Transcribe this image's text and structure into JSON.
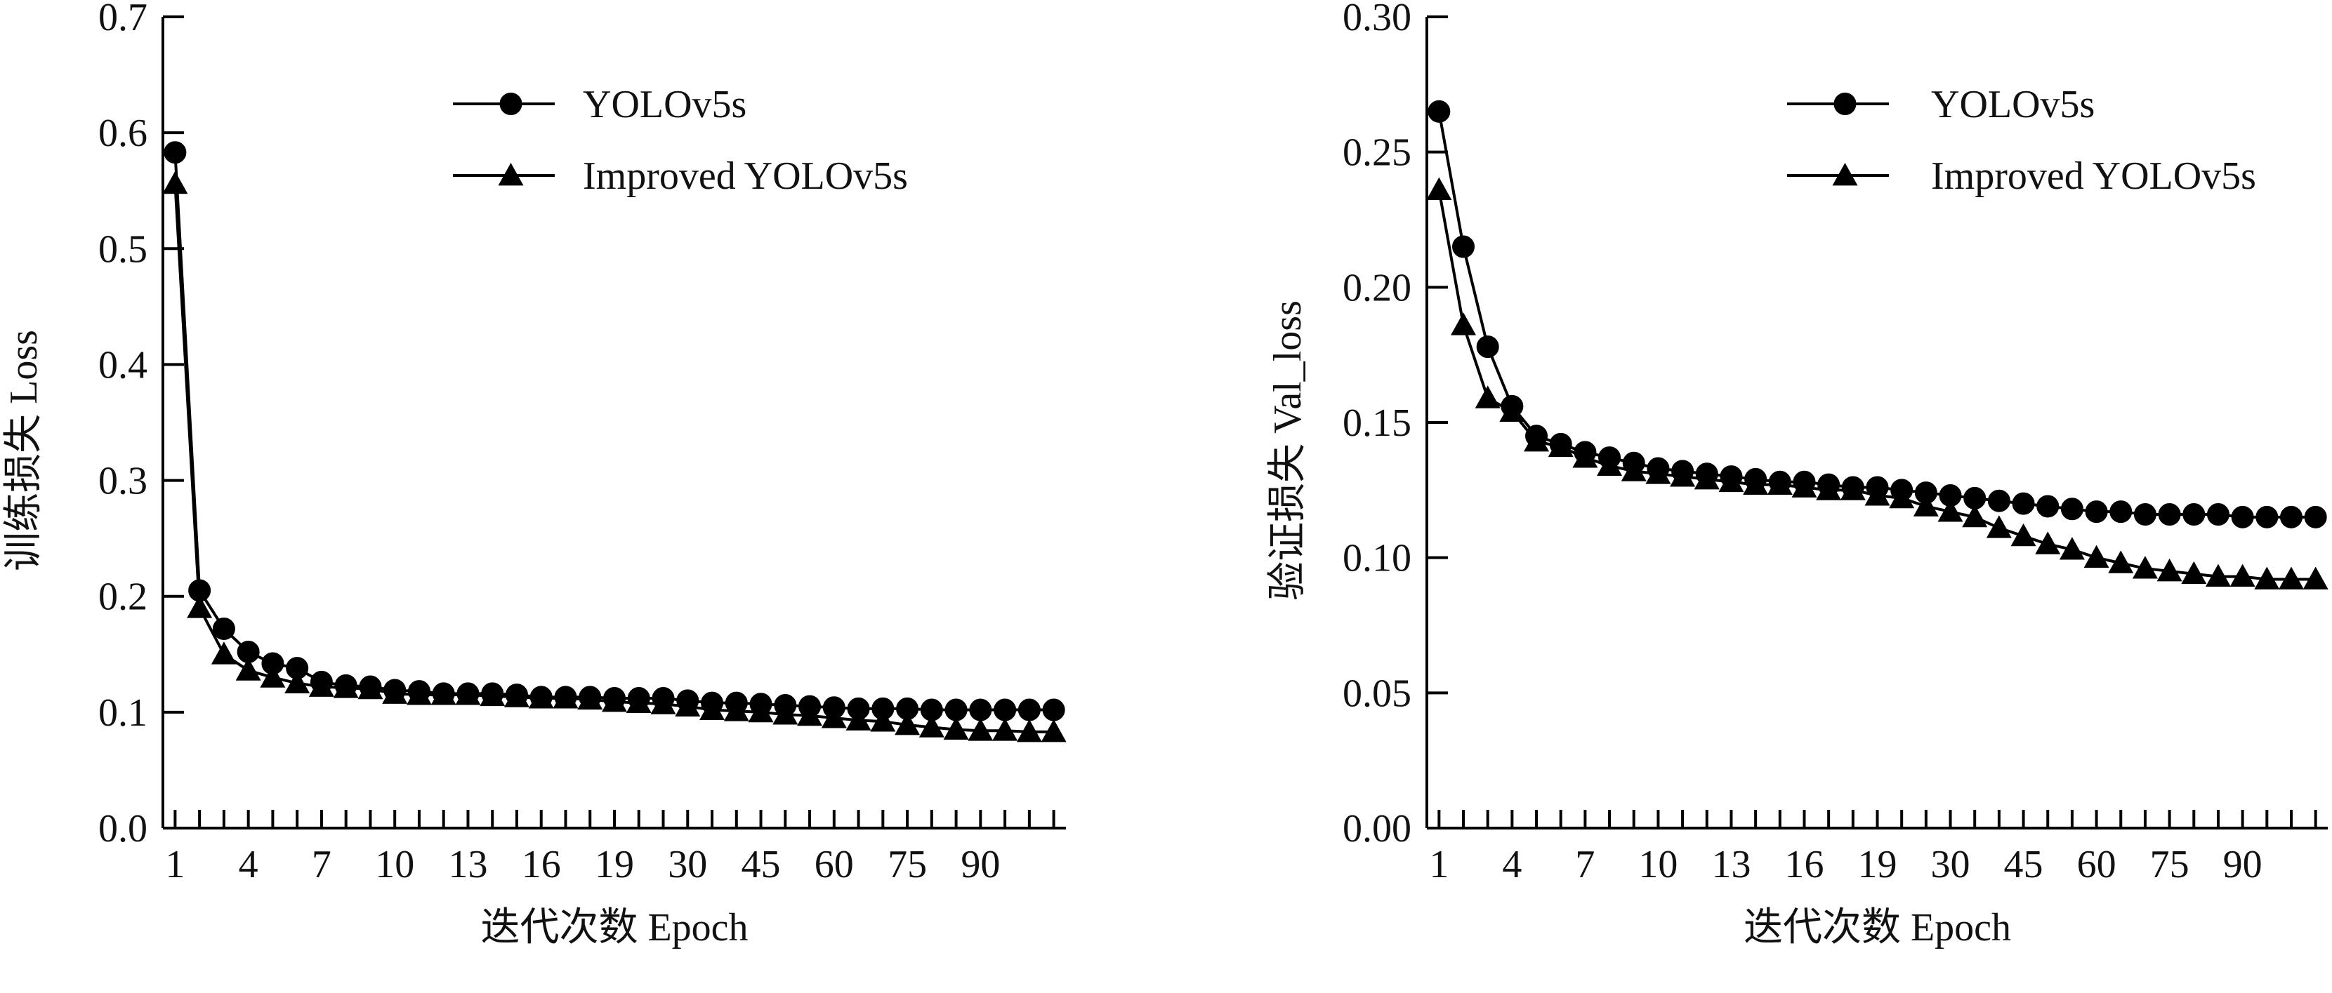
{
  "chart_data": [
    {
      "type": "line",
      "ylabel": "训练损失 Loss",
      "xlabel": "迭代次数 Epoch",
      "xticks": [
        "1",
        "4",
        "7",
        "10",
        "13",
        "16",
        "19",
        "30",
        "45",
        "60",
        "75",
        "90"
      ],
      "ylim": [
        0,
        0.7
      ],
      "yticks": [
        "0.0",
        "0.1",
        "0.2",
        "0.3",
        "0.4",
        "0.5",
        "0.6",
        "0.7"
      ],
      "legend_position": "top-right",
      "series": [
        {
          "name": "YOLOv5s",
          "marker": "circle",
          "values": [
            0.583,
            0.205,
            0.172,
            0.152,
            0.142,
            0.138,
            0.126,
            0.123,
            0.122,
            0.119,
            0.118,
            0.116,
            0.116,
            0.116,
            0.115,
            0.113,
            0.113,
            0.113,
            0.112,
            0.112,
            0.112,
            0.11,
            0.108,
            0.108,
            0.107,
            0.106,
            0.105,
            0.104,
            0.103,
            0.103,
            0.103,
            0.102,
            0.102,
            0.102,
            0.102,
            0.102,
            0.102
          ]
        },
        {
          "name": "Improved YOLOv5s",
          "marker": "triangle",
          "values": [
            0.556,
            0.19,
            0.15,
            0.136,
            0.13,
            0.125,
            0.122,
            0.121,
            0.12,
            0.116,
            0.115,
            0.115,
            0.115,
            0.114,
            0.113,
            0.112,
            0.112,
            0.111,
            0.109,
            0.108,
            0.107,
            0.105,
            0.102,
            0.101,
            0.1,
            0.098,
            0.097,
            0.095,
            0.093,
            0.092,
            0.089,
            0.087,
            0.085,
            0.084,
            0.084,
            0.083,
            0.083
          ]
        }
      ]
    },
    {
      "type": "line",
      "ylabel": "验证损失  Val_loss",
      "xlabel": "迭代次数 Epoch",
      "xticks": [
        "1",
        "4",
        "7",
        "10",
        "13",
        "16",
        "19",
        "30",
        "45",
        "60",
        "75",
        "90"
      ],
      "ylim": [
        0,
        0.3
      ],
      "yticks": [
        "0.00",
        "0.05",
        "0.10",
        "0.15",
        "0.20",
        "0.25",
        "0.30"
      ],
      "legend_position": "top-right",
      "series": [
        {
          "name": "YOLOv5s",
          "marker": "circle",
          "values": [
            0.265,
            0.215,
            0.178,
            0.156,
            0.145,
            0.142,
            0.139,
            0.137,
            0.135,
            0.133,
            0.132,
            0.131,
            0.13,
            0.129,
            0.128,
            0.128,
            0.127,
            0.126,
            0.126,
            0.125,
            0.124,
            0.123,
            0.122,
            0.121,
            0.12,
            0.119,
            0.118,
            0.117,
            0.117,
            0.116,
            0.116,
            0.116,
            0.116,
            0.115,
            0.115,
            0.115,
            0.115
          ]
        },
        {
          "name": "Improved YOLOv5s",
          "marker": "triangle",
          "values": [
            0.236,
            0.186,
            0.159,
            0.154,
            0.143,
            0.141,
            0.137,
            0.134,
            0.132,
            0.131,
            0.13,
            0.129,
            0.128,
            0.127,
            0.127,
            0.126,
            0.125,
            0.125,
            0.123,
            0.122,
            0.119,
            0.117,
            0.115,
            0.111,
            0.108,
            0.105,
            0.103,
            0.1,
            0.098,
            0.096,
            0.095,
            0.094,
            0.093,
            0.093,
            0.092,
            0.092,
            0.092
          ]
        }
      ]
    }
  ]
}
